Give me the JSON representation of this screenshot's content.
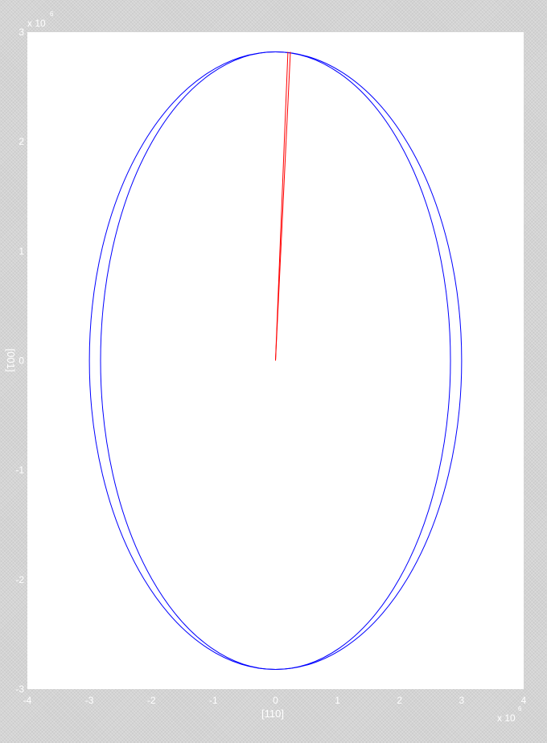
{
  "chart_data": {
    "type": "line",
    "xlabel": "[110]",
    "ylabel": "[001]",
    "xlim": [
      -4,
      4
    ],
    "ylim": [
      -3,
      3
    ],
    "x_ticks": [
      -4,
      -3,
      -2,
      -1,
      0,
      1,
      2,
      3,
      4
    ],
    "y_ticks": [
      -3,
      -2,
      -1,
      0,
      1,
      2,
      3
    ],
    "x_multiplier": {
      "base": "x 10",
      "exponent": "6"
    },
    "y_multiplier": {
      "base": "x 10",
      "exponent": "6"
    },
    "grid": false,
    "legend": "none",
    "series": [
      {
        "kind": "ellipse",
        "color": "#0000ff",
        "center": [
          0,
          0
        ],
        "semi_x": 3.0,
        "semi_y": 2.82
      },
      {
        "kind": "ellipse",
        "color": "#0000ff",
        "center": [
          0,
          0
        ],
        "semi_x": 2.82,
        "semi_y": 2.82
      },
      {
        "kind": "segment",
        "color": "#ff0000",
        "x": [
          0,
          0.2
        ],
        "y": [
          0,
          2.82
        ]
      },
      {
        "kind": "segment",
        "color": "#ff0000",
        "x": [
          0,
          0.24
        ],
        "y": [
          0,
          2.82
        ]
      }
    ]
  },
  "colors": {
    "axes_background": "#ffffff",
    "figure_background": "#d4d4d4",
    "text": "#ffffff"
  }
}
